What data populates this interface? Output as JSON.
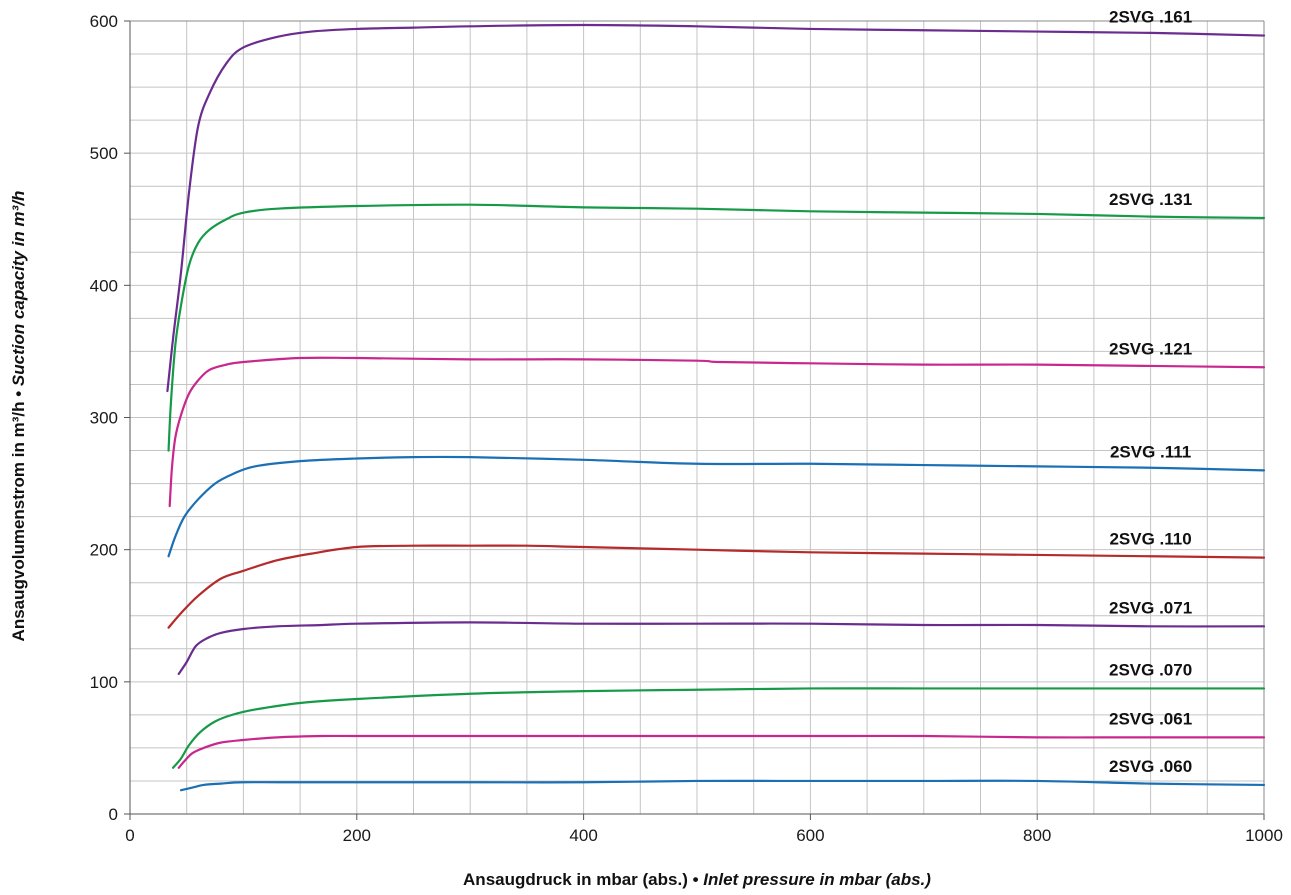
{
  "chart_data": {
    "type": "line",
    "xlabel": {
      "de": "Ansaugdruck in mbar (abs.)",
      "sep": " • ",
      "en": "Inlet pressure in mbar (abs.)"
    },
    "ylabel": {
      "de": "Ansaugvolumenstrom in m³/h",
      "sep": " • ",
      "en": "Suction capacity in m³/h"
    },
    "xlim": [
      0,
      1000
    ],
    "ylim": [
      0,
      600
    ],
    "x_ticks": [
      0,
      200,
      400,
      600,
      800,
      1000
    ],
    "y_ticks": [
      0,
      100,
      200,
      300,
      400,
      500,
      600
    ],
    "grid": true,
    "x_minor_step": 50,
    "y_minor_step": 25,
    "series": [
      {
        "name": "2SVG .161",
        "color": "#6a2c8e",
        "points": [
          [
            33,
            320
          ],
          [
            38,
            360
          ],
          [
            45,
            410
          ],
          [
            52,
            470
          ],
          [
            60,
            520
          ],
          [
            70,
            545
          ],
          [
            85,
            568
          ],
          [
            100,
            580
          ],
          [
            130,
            588
          ],
          [
            160,
            592
          ],
          [
            200,
            594
          ],
          [
            250,
            595
          ],
          [
            300,
            596
          ],
          [
            400,
            597
          ],
          [
            500,
            596
          ],
          [
            600,
            594
          ],
          [
            700,
            593
          ],
          [
            800,
            592
          ],
          [
            900,
            591
          ],
          [
            1000,
            589
          ]
        ]
      },
      {
        "name": "2SVG .131",
        "color": "#179a48",
        "points": [
          [
            34,
            275
          ],
          [
            36,
            310
          ],
          [
            40,
            355
          ],
          [
            45,
            385
          ],
          [
            52,
            415
          ],
          [
            60,
            432
          ],
          [
            70,
            442
          ],
          [
            85,
            450
          ],
          [
            100,
            455
          ],
          [
            130,
            458
          ],
          [
            200,
            460
          ],
          [
            300,
            461
          ],
          [
            400,
            459
          ],
          [
            500,
            458
          ],
          [
            600,
            456
          ],
          [
            700,
            455
          ],
          [
            800,
            454
          ],
          [
            900,
            452
          ],
          [
            1000,
            451
          ]
        ]
      },
      {
        "name": "2SVG .121",
        "color": "#c8288e",
        "points": [
          [
            35,
            233
          ],
          [
            37,
            262
          ],
          [
            40,
            285
          ],
          [
            45,
            302
          ],
          [
            52,
            318
          ],
          [
            60,
            328
          ],
          [
            70,
            336
          ],
          [
            85,
            340
          ],
          [
            100,
            342
          ],
          [
            150,
            345
          ],
          [
            200,
            345
          ],
          [
            300,
            344
          ],
          [
            400,
            344
          ],
          [
            500,
            343
          ],
          [
            520,
            342
          ],
          [
            600,
            341
          ],
          [
            700,
            340
          ],
          [
            800,
            340
          ],
          [
            900,
            339
          ],
          [
            1000,
            338
          ]
        ]
      },
      {
        "name": "2SVG .111",
        "color": "#1a6fb5",
        "points": [
          [
            34,
            195
          ],
          [
            40,
            210
          ],
          [
            48,
            225
          ],
          [
            60,
            238
          ],
          [
            75,
            250
          ],
          [
            90,
            257
          ],
          [
            110,
            263
          ],
          [
            150,
            267
          ],
          [
            200,
            269
          ],
          [
            250,
            270
          ],
          [
            300,
            270
          ],
          [
            400,
            268
          ],
          [
            500,
            265
          ],
          [
            600,
            265
          ],
          [
            700,
            264
          ],
          [
            800,
            263
          ],
          [
            900,
            262
          ],
          [
            1000,
            260
          ]
        ]
      },
      {
        "name": "2SVG .110",
        "color": "#b52a2a",
        "points": [
          [
            34,
            141
          ],
          [
            45,
            152
          ],
          [
            60,
            165
          ],
          [
            80,
            178
          ],
          [
            100,
            184
          ],
          [
            130,
            192
          ],
          [
            160,
            197
          ],
          [
            200,
            202
          ],
          [
            250,
            203
          ],
          [
            300,
            203
          ],
          [
            350,
            203
          ],
          [
            400,
            202
          ],
          [
            500,
            200
          ],
          [
            600,
            198
          ],
          [
            700,
            197
          ],
          [
            800,
            196
          ],
          [
            900,
            195
          ],
          [
            1000,
            194
          ]
        ]
      },
      {
        "name": "2SVG .071",
        "color": "#6a2c8e",
        "points": [
          [
            43,
            106
          ],
          [
            50,
            115
          ],
          [
            58,
            127
          ],
          [
            68,
            133
          ],
          [
            80,
            137
          ],
          [
            100,
            140
          ],
          [
            130,
            142
          ],
          [
            170,
            143
          ],
          [
            200,
            144
          ],
          [
            300,
            145
          ],
          [
            400,
            144
          ],
          [
            500,
            144
          ],
          [
            600,
            144
          ],
          [
            700,
            143
          ],
          [
            800,
            143
          ],
          [
            900,
            142
          ],
          [
            1000,
            142
          ]
        ]
      },
      {
        "name": "2SVG .070",
        "color": "#179a48",
        "points": [
          [
            38,
            35
          ],
          [
            45,
            42
          ],
          [
            52,
            52
          ],
          [
            62,
            62
          ],
          [
            75,
            70
          ],
          [
            90,
            75
          ],
          [
            110,
            79
          ],
          [
            150,
            84
          ],
          [
            200,
            87
          ],
          [
            300,
            91
          ],
          [
            400,
            93
          ],
          [
            500,
            94
          ],
          [
            600,
            95
          ],
          [
            700,
            95
          ],
          [
            800,
            95
          ],
          [
            900,
            95
          ],
          [
            1000,
            95
          ]
        ]
      },
      {
        "name": "2SVG .061",
        "color": "#c8288e",
        "points": [
          [
            43,
            35
          ],
          [
            48,
            40
          ],
          [
            55,
            46
          ],
          [
            65,
            50
          ],
          [
            80,
            54
          ],
          [
            100,
            56
          ],
          [
            130,
            58
          ],
          [
            170,
            59
          ],
          [
            200,
            59
          ],
          [
            300,
            59
          ],
          [
            400,
            59
          ],
          [
            500,
            59
          ],
          [
            600,
            59
          ],
          [
            700,
            59
          ],
          [
            800,
            58
          ],
          [
            900,
            58
          ],
          [
            1000,
            58
          ]
        ]
      },
      {
        "name": "2SVG .060",
        "color": "#1a6fb5",
        "points": [
          [
            45,
            18
          ],
          [
            55,
            20
          ],
          [
            65,
            22
          ],
          [
            80,
            23
          ],
          [
            100,
            24
          ],
          [
            150,
            24
          ],
          [
            200,
            24
          ],
          [
            300,
            24
          ],
          [
            400,
            24
          ],
          [
            500,
            25
          ],
          [
            600,
            25
          ],
          [
            700,
            25
          ],
          [
            800,
            25
          ],
          [
            900,
            23
          ],
          [
            1000,
            22
          ]
        ]
      }
    ]
  }
}
